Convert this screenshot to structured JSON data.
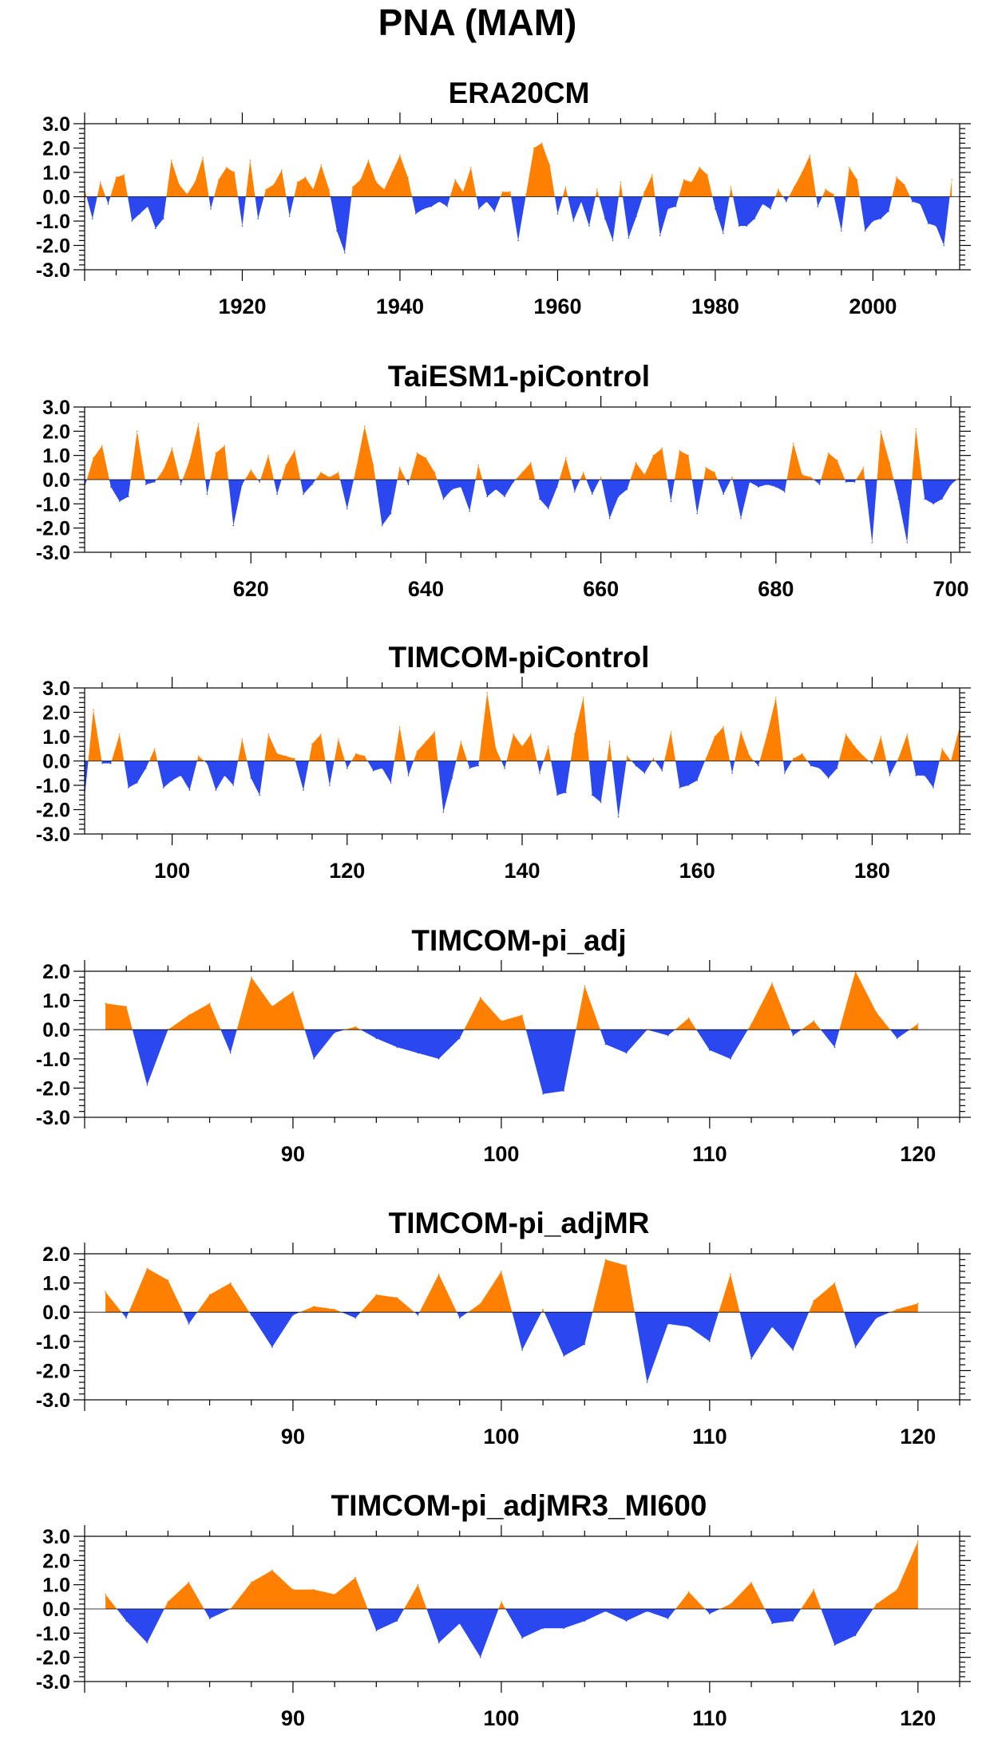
{
  "figure_title": "PNA (MAM)",
  "colors": {
    "positive": "#ff8000",
    "negative": "#2a47f0",
    "axis": "#000000",
    "background": "#ffffff"
  },
  "chart_data": [
    {
      "type": "area",
      "title": "ERA20CM",
      "xlabel": "",
      "ylabel": "",
      "xlim": [
        1900,
        2011
      ],
      "ylim": [
        -3.0,
        3.0
      ],
      "yticks": [
        "3.0",
        "2.0",
        "1.0",
        "0.0",
        "-1.0",
        "-2.0",
        "-3.0"
      ],
      "xticks": [
        1920,
        1940,
        1960,
        1980,
        2000
      ],
      "x_start": 1900,
      "x_step": 1,
      "values": [
        0.3,
        -0.9,
        0.6,
        -0.3,
        0.8,
        0.9,
        -1.0,
        -0.7,
        -0.4,
        -1.3,
        -0.9,
        1.5,
        0.5,
        0.1,
        0.6,
        1.6,
        -0.5,
        0.7,
        1.2,
        1.0,
        -1.2,
        1.5,
        -0.9,
        0.3,
        0.5,
        1.1,
        -0.8,
        0.6,
        0.8,
        0.3,
        1.3,
        0.3,
        -1.4,
        -2.3,
        0.4,
        0.7,
        1.5,
        0.6,
        0.3,
        1.0,
        1.7,
        0.8,
        -0.7,
        -0.5,
        -0.4,
        -0.2,
        -0.4,
        0.7,
        0.2,
        1.2,
        -0.5,
        -0.2,
        -0.6,
        0.2,
        0.2,
        -1.8,
        0.1,
        2.0,
        2.2,
        1.3,
        -0.7,
        0.4,
        -1.0,
        -0.2,
        -1.2,
        0.3,
        -0.9,
        -1.8,
        0.6,
        -1.7,
        -0.8,
        0.2,
        0.9,
        -1.6,
        -0.5,
        -0.4,
        0.7,
        0.6,
        1.2,
        0.9,
        -0.5,
        -1.5,
        0.4,
        -1.2,
        -1.2,
        -0.9,
        -0.3,
        -0.5,
        0.3,
        -0.2,
        0.4,
        1.0,
        1.7,
        -0.4,
        0.3,
        0.1,
        -1.4,
        1.2,
        0.7,
        -1.4,
        -1.0,
        -0.9,
        -0.6,
        0.8,
        0.5,
        -0.2,
        -0.3,
        -1.1,
        -1.2,
        -2.0,
        0.7
      ]
    },
    {
      "type": "area",
      "title": "TaiESM1-piControl",
      "xlabel": "",
      "ylabel": "",
      "xlim": [
        601,
        701
      ],
      "ylim": [
        -3.0,
        3.0
      ],
      "yticks": [
        "3.0",
        "2.0",
        "1.0",
        "0.0",
        "-1.0",
        "-2.0",
        "-3.0"
      ],
      "xticks": [
        620,
        640,
        660,
        680,
        700
      ],
      "x_start": 601,
      "x_step": 1,
      "values": [
        -0.3,
        0.9,
        1.4,
        -0.3,
        -0.9,
        -0.7,
        2.0,
        -0.2,
        -0.1,
        0.4,
        1.3,
        -0.2,
        0.8,
        2.3,
        -0.6,
        1.1,
        1.4,
        -1.9,
        -0.2,
        0.4,
        -0.1,
        1.0,
        -0.6,
        0.6,
        1.2,
        -0.6,
        -0.2,
        0.3,
        0.1,
        0.3,
        -1.2,
        0.4,
        2.2,
        0.6,
        -1.9,
        -1.4,
        0.5,
        -0.2,
        1.1,
        0.9,
        0.3,
        -0.8,
        -0.4,
        -0.3,
        -1.3,
        0.6,
        -0.7,
        -0.4,
        -0.7,
        -0.1,
        0.3,
        0.7,
        -0.8,
        -1.2,
        -0.3,
        0.9,
        -0.5,
        0.3,
        -0.6,
        0.1,
        -1.6,
        -0.7,
        -0.4,
        0.7,
        0.2,
        1.0,
        1.3,
        -0.9,
        1.2,
        1.0,
        -1.4,
        0.5,
        0.3,
        -0.6,
        0.1,
        -1.6,
        -0.1,
        -0.3,
        -0.2,
        -0.3,
        -0.5,
        1.5,
        0.2,
        0.1,
        -0.2,
        1.1,
        0.8,
        -0.1,
        -0.1,
        0.5,
        -2.6,
        2.0,
        0.7,
        -0.8,
        -2.6,
        2.1,
        -0.8,
        -1.0,
        -0.8,
        -0.2,
        0.1
      ]
    },
    {
      "type": "area",
      "title": "TIMCOM-piControl",
      "xlabel": "",
      "ylabel": "",
      "xlim": [
        90,
        190
      ],
      "ylim": [
        -3.0,
        3.0
      ],
      "yticks": [
        "3.0",
        "2.0",
        "1.0",
        "0.0",
        "-1.0",
        "-2.0",
        "-3.0"
      ],
      "xticks": [
        100,
        120,
        140,
        160,
        180
      ],
      "x_start": 90,
      "x_step": 1,
      "values": [
        -1.5,
        2.1,
        -0.1,
        -0.1,
        1.1,
        -1.1,
        -0.9,
        -0.3,
        0.5,
        -1.1,
        -0.8,
        -0.6,
        -1.2,
        0.2,
        -0.1,
        -1.2,
        -0.6,
        -1.0,
        0.9,
        -0.7,
        -1.4,
        1.1,
        0.3,
        0.2,
        0.1,
        -1.2,
        0.7,
        1.1,
        -1.0,
        0.9,
        -0.3,
        0.3,
        0.2,
        -0.4,
        -0.3,
        -0.9,
        1.4,
        -0.6,
        0.4,
        0.8,
        1.2,
        -2.1,
        -0.7,
        0.8,
        -0.3,
        -0.2,
        2.8,
        0.5,
        -0.3,
        1.1,
        0.6,
        1.1,
        -0.5,
        0.6,
        -1.4,
        -1.3,
        1.1,
        2.6,
        -1.4,
        -1.7,
        0.8,
        -2.3,
        0.2,
        -0.2,
        -0.5,
        0.1,
        -0.4,
        1.2,
        -1.1,
        -1.0,
        -0.8,
        0.1,
        1.0,
        1.4,
        -0.5,
        1.2,
        0.2,
        -0.2,
        1.1,
        2.6,
        -0.5,
        0.1,
        0.3,
        -0.2,
        -0.3,
        -0.7,
        -0.3,
        1.1,
        0.6,
        0.2,
        -0.1,
        1.0,
        -0.6,
        0.1,
        1.1,
        -0.6,
        -0.6,
        -1.1,
        0.5,
        0.0,
        1.4
      ]
    },
    {
      "type": "area",
      "title": "TIMCOM-pi_adj",
      "xlabel": "",
      "ylabel": "",
      "xlim": [
        80,
        122
      ],
      "ylim": [
        -3.0,
        2.0
      ],
      "yticks": [
        "2.0",
        "1.0",
        "0.0",
        "-1.0",
        "-2.0",
        "-3.0"
      ],
      "xticks": [
        90,
        100,
        110,
        120
      ],
      "x_start": 81,
      "x_step": 1,
      "values": [
        0.9,
        0.8,
        -1.9,
        0.0,
        0.5,
        0.9,
        -0.8,
        1.8,
        0.8,
        1.3,
        -1.0,
        -0.1,
        0.1,
        -0.3,
        -0.6,
        -0.8,
        -1.0,
        -0.3,
        1.1,
        0.3,
        0.5,
        -2.2,
        -2.1,
        1.5,
        -0.5,
        -0.8,
        0.0,
        -0.2,
        0.4,
        -0.7,
        -1.0,
        0.2,
        1.6,
        -0.2,
        0.3,
        -0.6,
        2.0,
        0.6,
        -0.3,
        0.2
      ]
    },
    {
      "type": "area",
      "title": "TIMCOM-pi_adjMR",
      "xlabel": "",
      "ylabel": "",
      "xlim": [
        80,
        122
      ],
      "ylim": [
        -3.0,
        2.0
      ],
      "yticks": [
        "2.0",
        "1.0",
        "0.0",
        "-1.0",
        "-2.0",
        "-3.0"
      ],
      "xticks": [
        90,
        100,
        110,
        120
      ],
      "x_start": 81,
      "x_step": 1,
      "values": [
        0.7,
        -0.2,
        1.5,
        1.1,
        -0.4,
        0.6,
        1.0,
        -0.1,
        -1.2,
        -0.1,
        0.2,
        0.1,
        -0.2,
        0.6,
        0.5,
        -0.1,
        1.3,
        -0.2,
        0.3,
        1.4,
        -1.3,
        0.1,
        -1.5,
        -1.1,
        1.8,
        1.6,
        -2.4,
        -0.4,
        -0.5,
        -1.0,
        1.3,
        -1.6,
        -0.5,
        -1.3,
        0.4,
        1.0,
        -1.2,
        -0.2,
        0.1,
        0.3
      ]
    },
    {
      "type": "area",
      "title": "TIMCOM-pi_adjMR3_MI600",
      "xlabel": "",
      "ylabel": "",
      "xlim": [
        80,
        122
      ],
      "ylim": [
        -3.0,
        3.0
      ],
      "yticks": [
        "3.0",
        "2.0",
        "1.0",
        "0.0",
        "-1.0",
        "-2.0",
        "-3.0"
      ],
      "xticks": [
        90,
        100,
        110,
        120
      ],
      "x_start": 81,
      "x_step": 1,
      "values": [
        0.6,
        -0.5,
        -1.4,
        0.3,
        1.1,
        -0.4,
        0.0,
        1.1,
        1.6,
        0.8,
        0.8,
        0.6,
        1.3,
        -0.9,
        -0.5,
        1.0,
        -1.4,
        -0.6,
        -2.0,
        0.3,
        -1.2,
        -0.8,
        -0.8,
        -0.5,
        -0.1,
        -0.5,
        -0.1,
        -0.4,
        0.7,
        -0.2,
        0.2,
        1.1,
        -0.6,
        -0.5,
        0.8,
        -1.5,
        -1.1,
        0.2,
        0.8,
        2.8
      ]
    }
  ]
}
